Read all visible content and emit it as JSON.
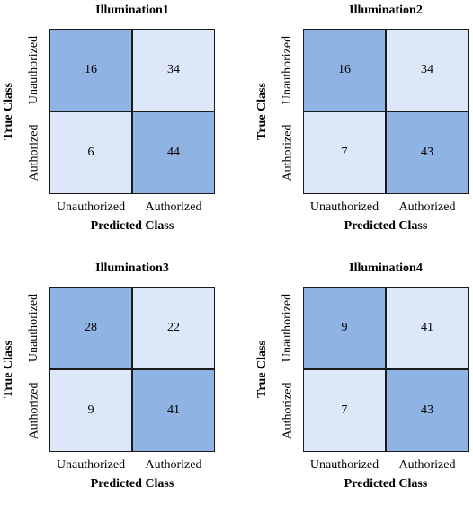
{
  "chart_data": [
    {
      "type": "heatmap",
      "title": "Illumination1",
      "xlabel": "Predicted Class",
      "ylabel": "True Class",
      "row_labels": [
        "Unauthorized",
        "Authorized"
      ],
      "col_labels": [
        "Unauthorized",
        "Authorized"
      ],
      "values": [
        [
          16,
          34
        ],
        [
          6,
          44
        ]
      ]
    },
    {
      "type": "heatmap",
      "title": "Illumination2",
      "xlabel": "Predicted Class",
      "ylabel": "True Class",
      "row_labels": [
        "Unauthorized",
        "Authorized"
      ],
      "col_labels": [
        "Unauthorized",
        "Authorized"
      ],
      "values": [
        [
          16,
          34
        ],
        [
          7,
          43
        ]
      ]
    },
    {
      "type": "heatmap",
      "title": "Illumination3",
      "xlabel": "Predicted Class",
      "ylabel": "True Class",
      "row_labels": [
        "Unauthorized",
        "Authorized"
      ],
      "col_labels": [
        "Unauthorized",
        "Authorized"
      ],
      "values": [
        [
          28,
          22
        ],
        [
          9,
          41
        ]
      ]
    },
    {
      "type": "heatmap",
      "title": "Illumination4",
      "xlabel": "Predicted Class",
      "ylabel": "True Class",
      "row_labels": [
        "Unauthorized",
        "Authorized"
      ],
      "col_labels": [
        "Unauthorized",
        "Authorized"
      ],
      "values": [
        [
          9,
          41
        ],
        [
          7,
          43
        ]
      ]
    }
  ],
  "colors": {
    "correct_cell": "#8fb4e3",
    "error_cell": "#dce8f7",
    "grid_line": "#1a1a1a"
  }
}
